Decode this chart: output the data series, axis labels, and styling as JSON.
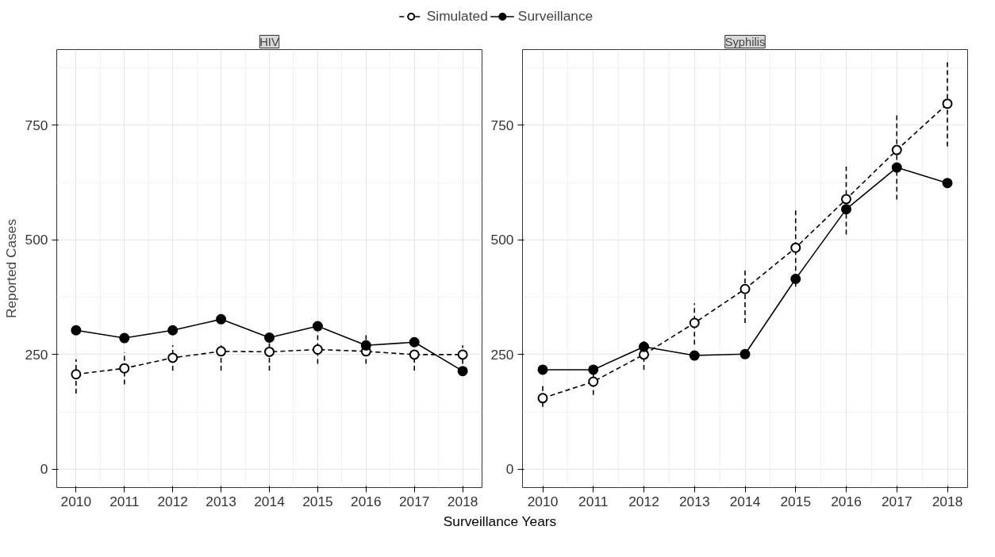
{
  "chart_data": [
    {
      "type": "line",
      "title": "HIV",
      "ylabel": "Reported Cases",
      "xlabel": "Surveillance Years",
      "legend": "top",
      "grid": true,
      "marker": "circle",
      "x": [
        2010,
        2011,
        2012,
        2013,
        2014,
        2015,
        2016,
        2017,
        2018
      ],
      "xlim": [
        2009.6,
        2018.4
      ],
      "xticks": [
        2010,
        2011,
        2012,
        2013,
        2014,
        2015,
        2016,
        2017,
        2018
      ],
      "ylim": [
        -40,
        915
      ],
      "yticks": [
        0,
        250,
        500,
        750
      ],
      "series": [
        {
          "name": "Simulated",
          "color": "#000000",
          "line_style": "dashed",
          "values": [
            207,
            220,
            243,
            257,
            256,
            261,
            257,
            250,
            250
          ],
          "errors": [
            [
              165,
              240
            ],
            [
              185,
              255
            ],
            [
              215,
              270
            ],
            [
              215,
              270
            ],
            [
              215,
              275
            ],
            [
              230,
              300
            ],
            [
              230,
              295
            ],
            [
              215,
              268
            ],
            [
              230,
              270
            ]
          ]
        },
        {
          "name": "Surveillance",
          "color": "#000000",
          "line_style": "solid",
          "values": [
            303,
            286,
            303,
            327,
            287,
            312,
            270,
            277,
            214
          ]
        }
      ]
    },
    {
      "type": "line",
      "title": "Syphilis",
      "grid": true,
      "marker": "circle",
      "x": [
        2010,
        2011,
        2012,
        2013,
        2014,
        2015,
        2016,
        2017,
        2018
      ],
      "xlim": [
        2009.6,
        2018.4
      ],
      "xticks": [
        2010,
        2011,
        2012,
        2013,
        2014,
        2015,
        2016,
        2017,
        2018
      ],
      "ylim": [
        -40,
        915
      ],
      "yticks": [
        0,
        250,
        500,
        750
      ],
      "series": [
        {
          "color": "#000000",
          "line_style": "dashed",
          "values": [
            155,
            191,
            250,
            319,
            393,
            483,
            589,
            696,
            797
          ],
          "errors": [
            [
              136,
              184
            ],
            [
              162,
              229
            ],
            [
              217,
              285
            ],
            [
              272,
              362
            ],
            [
              319,
              439
            ],
            [
              398,
              567
            ],
            [
              512,
              660
            ],
            [
              588,
              778
            ],
            [
              704,
              891
            ]
          ]
        },
        {
          "color": "#000000",
          "line_style": "solid",
          "values": [
            217,
            217,
            267,
            248,
            251,
            415,
            567,
            658,
            624
          ]
        }
      ]
    }
  ]
}
